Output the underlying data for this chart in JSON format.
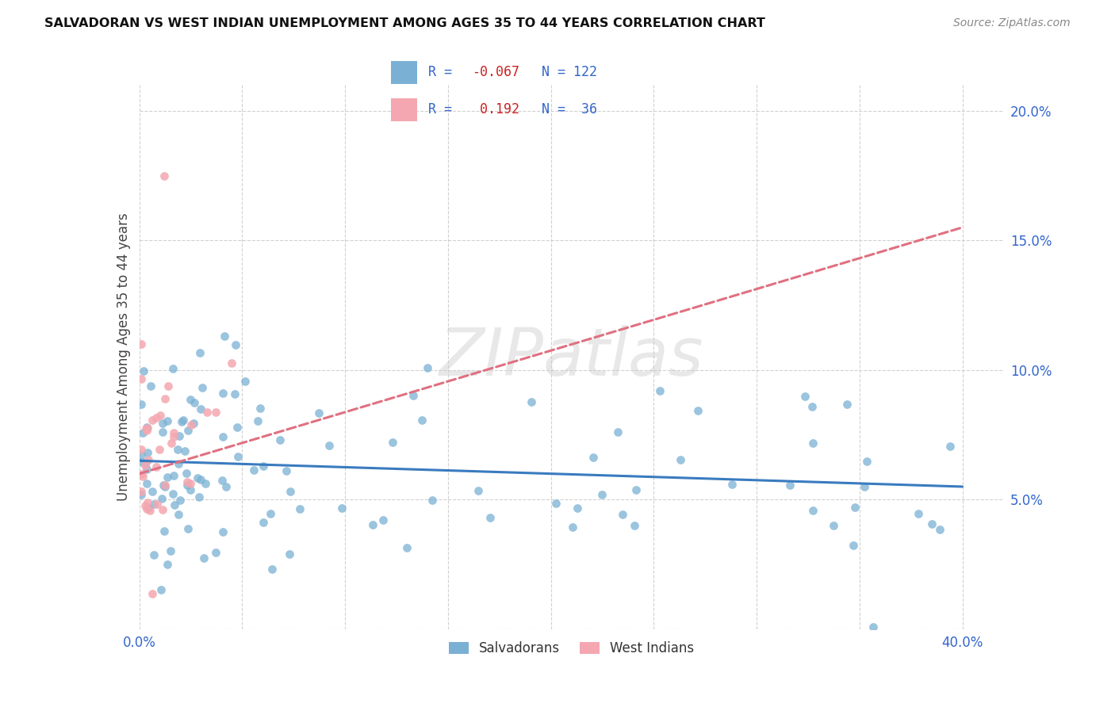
{
  "title": "SALVADORAN VS WEST INDIAN UNEMPLOYMENT AMONG AGES 35 TO 44 YEARS CORRELATION CHART",
  "source": "Source: ZipAtlas.com",
  "ylabel": "Unemployment Among Ages 35 to 44 years",
  "xlim": [
    0.0,
    0.42
  ],
  "ylim": [
    0.0,
    0.21
  ],
  "xticks": [
    0.0,
    0.05,
    0.1,
    0.15,
    0.2,
    0.25,
    0.3,
    0.35,
    0.4
  ],
  "xticklabels": [
    "0.0%",
    "",
    "",
    "",
    "",
    "",
    "",
    "",
    "40.0%"
  ],
  "yticks": [
    0.0,
    0.05,
    0.1,
    0.15,
    0.2
  ],
  "yticklabels": [
    "",
    "5.0%",
    "10.0%",
    "15.0%",
    "20.0%"
  ],
  "salvadoran_color": "#7ab0d4",
  "west_indian_color": "#f4a7b0",
  "salvadoran_line_color": "#3a7bbf",
  "west_indian_line_color": "#e07080",
  "salvadoran_R": -0.067,
  "salvadoran_N": 122,
  "west_indian_R": 0.192,
  "west_indian_N": 36,
  "watermark": "ZIPatlas",
  "background_color": "#ffffff",
  "grid_color": "#cccccc"
}
